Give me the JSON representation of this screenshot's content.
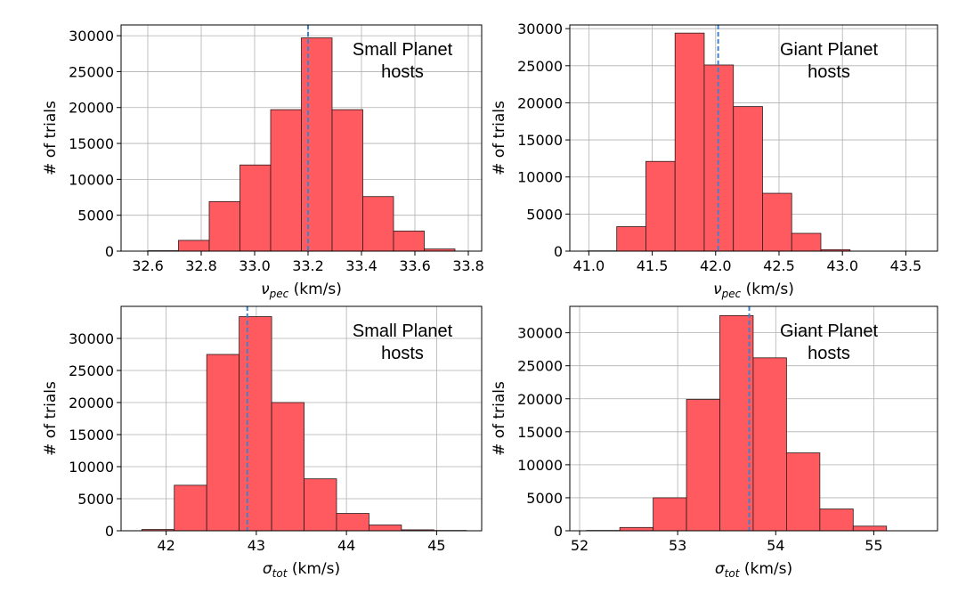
{
  "chart_data": [
    {
      "type": "bar",
      "panel": "top-left",
      "annotation": [
        "Small Planet",
        "hosts"
      ],
      "xlabel_main": "ν",
      "xlabel_sub": "pec",
      "xlabel_unit": " (km/s)",
      "ylabel": "# of trials",
      "xlim": [
        32.5,
        33.85
      ],
      "ylim": [
        0,
        31500
      ],
      "xticks": [
        32.6,
        32.8,
        33.0,
        33.2,
        33.4,
        33.6,
        33.8
      ],
      "xtick_labels": [
        "32.6",
        "32.8",
        "33.0",
        "33.2",
        "33.4",
        "33.6",
        "33.8"
      ],
      "yticks": [
        0,
        5000,
        10000,
        15000,
        20000,
        25000,
        30000
      ],
      "ytick_labels": [
        "0",
        "5000",
        "10000",
        "15000",
        "20000",
        "25000",
        "30000"
      ],
      "bin_edges": [
        32.6,
        32.715,
        32.83,
        32.945,
        33.06,
        33.175,
        33.29,
        33.405,
        33.52,
        33.635,
        33.75
      ],
      "counts": [
        60,
        1500,
        6900,
        12000,
        19700,
        29700,
        19700,
        7600,
        2800,
        300
      ],
      "mean_line": 33.2
    },
    {
      "type": "bar",
      "panel": "top-right",
      "annotation": [
        "Giant Planet",
        "hosts"
      ],
      "xlabel_main": "ν",
      "xlabel_sub": "pec",
      "xlabel_unit": " (km/s)",
      "ylabel": "# of trials",
      "xlim": [
        40.85,
        43.75
      ],
      "ylim": [
        0,
        30500
      ],
      "xticks": [
        41.0,
        41.5,
        42.0,
        42.5,
        43.0,
        43.5
      ],
      "xtick_labels": [
        "41.0",
        "41.5",
        "42.0",
        "42.5",
        "43.0",
        "43.5"
      ],
      "yticks": [
        0,
        5000,
        10000,
        15000,
        20000,
        25000,
        30000
      ],
      "ytick_labels": [
        "0",
        "5000",
        "10000",
        "15000",
        "20000",
        "25000",
        "30000"
      ],
      "bin_edges": [
        40.99,
        41.22,
        41.45,
        41.68,
        41.91,
        42.14,
        42.37,
        42.6,
        42.83,
        43.06,
        43.29
      ],
      "counts": [
        40,
        3300,
        12100,
        29400,
        25100,
        19500,
        7800,
        2400,
        200,
        0
      ],
      "mean_line": 42.02
    },
    {
      "type": "bar",
      "panel": "bottom-left",
      "annotation": [
        "Small Planet",
        "hosts"
      ],
      "xlabel_main": "σ",
      "xlabel_sub": "tot",
      "xlabel_unit": " (km/s)",
      "ylabel": "# of trials",
      "xlim": [
        41.5,
        45.5
      ],
      "ylim": [
        0,
        35000
      ],
      "xticks": [
        42,
        43,
        44,
        45
      ],
      "xtick_labels": [
        "42",
        "43",
        "44",
        "45"
      ],
      "yticks": [
        0,
        5000,
        10000,
        15000,
        20000,
        25000,
        30000
      ],
      "ytick_labels": [
        "0",
        "5000",
        "10000",
        "15000",
        "20000",
        "25000",
        "30000"
      ],
      "bin_edges": [
        41.73,
        42.09,
        42.45,
        42.81,
        43.17,
        43.53,
        43.89,
        44.25,
        44.61,
        44.97,
        45.33
      ],
      "counts": [
        200,
        7100,
        27500,
        33400,
        20000,
        8100,
        2700,
        900,
        150,
        50
      ],
      "mean_line": 42.9
    },
    {
      "type": "bar",
      "panel": "bottom-right",
      "annotation": [
        "Giant Planet",
        "hosts"
      ],
      "xlabel_main": "σ",
      "xlabel_sub": "tot",
      "xlabel_unit": " (km/s)",
      "ylabel": "# of trials",
      "xlim": [
        51.9,
        55.65
      ],
      "ylim": [
        0,
        34000
      ],
      "xticks": [
        52,
        53,
        54,
        55
      ],
      "xtick_labels": [
        "52",
        "53",
        "54",
        "55"
      ],
      "yticks": [
        0,
        5000,
        10000,
        15000,
        20000,
        25000,
        30000
      ],
      "ytick_labels": [
        "0",
        "5000",
        "10000",
        "15000",
        "20000",
        "25000",
        "30000"
      ],
      "bin_edges": [
        52.07,
        52.41,
        52.75,
        53.09,
        53.43,
        53.77,
        54.11,
        54.45,
        54.79,
        55.13,
        55.47
      ],
      "counts": [
        50,
        500,
        5000,
        19900,
        32600,
        26200,
        11800,
        3300,
        700,
        0
      ],
      "mean_line": 53.73
    }
  ],
  "colors": {
    "bar_fill": "#fe5a5f",
    "bar_edge": "#2a1a1a",
    "mean_line": "#3d82cc",
    "grid": "#b0b0b0"
  }
}
